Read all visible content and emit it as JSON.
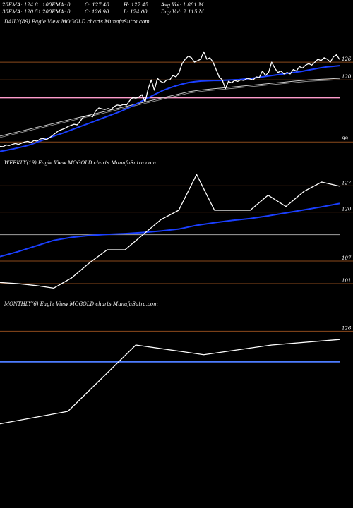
{
  "header": {
    "ema20": "20EMA: 124.8",
    "ema100": "100EMA: 0",
    "open": "O: 127.40",
    "high": "H: 127.45",
    "avg_vol": "Avg Vol: 1.881 M",
    "ema30": "30EMA: 120.51",
    "ema200": "200EMA: 0",
    "close": "C: 126.90",
    "low": "L: 124.00",
    "day_vol": "Day Vol: 2.115 M"
  },
  "colors": {
    "background": "#000000",
    "price": "#ffffff",
    "ema_fast": "#1a3fff",
    "ema_slow": "#cccccc",
    "level_line": "#8b4a1c",
    "pink_line": "#ff9ccc",
    "blue_band": "#4d7cff",
    "gray_line": "#a0a0a0"
  },
  "chart_data": [
    {
      "type": "line",
      "title": "DAILY(89) Eagle  View  MOGOLD charts MunafaSutra.com",
      "ylim": [
        95,
        137
      ],
      "levels": [
        "126",
        "120",
        "99"
      ],
      "level_values": [
        126,
        120,
        99
      ],
      "pink_level": 114,
      "series": [
        {
          "name": "price",
          "values": [
            97.5,
            97.4,
            98,
            97.8,
            98.2,
            98.5,
            98.2,
            98.6,
            99.0,
            99.2,
            98.8,
            99.5,
            99.3,
            100.0,
            100.2,
            99.8,
            100.4,
            101.2,
            102.0,
            102.8,
            103.2,
            103.6,
            104.2,
            104.6,
            105.0,
            104.8,
            106.0,
            107.5,
            107.8,
            108.0,
            107.5,
            109.5,
            110.5,
            110.2,
            110.0,
            110.3,
            110.0,
            111.0,
            111.5,
            111.3,
            111.7,
            111.5,
            113.0,
            114.0,
            113.8,
            114.2,
            115.0,
            112.5,
            117.0,
            120.0,
            116.5,
            120.5,
            119.5,
            119.0,
            120.0,
            120.0,
            121.5,
            121.0,
            122.5,
            125.5,
            127.0,
            128.0,
            127.5,
            126.0,
            126.5,
            127.0,
            129.5,
            127.0,
            127.5,
            126.0,
            123.5,
            121.0,
            120.0,
            117.0,
            119.5,
            119.0,
            119.8,
            119.5,
            120.0,
            119.8,
            120.5,
            120.3,
            120.0,
            121.0,
            120.8,
            123.0,
            121.5,
            122.5,
            126.0,
            124.0,
            122.5,
            123.0,
            122.0,
            122.5,
            122.0,
            123.5,
            123.0,
            124.5,
            124.0,
            125.0,
            125.5,
            125.0,
            126.0,
            127.0,
            126.5,
            127.5,
            127.0,
            126.0,
            127.8,
            128.5,
            126.9
          ]
        },
        {
          "name": "EMA20",
          "values": [
            95.8,
            96.2,
            96.6,
            97.1,
            97.6,
            98.2,
            99.0,
            99.8,
            100.6,
            101.3,
            102.0,
            102.8,
            103.6,
            104.4,
            105.2,
            106.0,
            106.8,
            107.6,
            108.4,
            109.2,
            110.1,
            111.1,
            112.2,
            113.3,
            114.4,
            115.5,
            116.5,
            117.3,
            118.0,
            118.6,
            119.1,
            119.4,
            119.6,
            119.7,
            119.8,
            119.8,
            119.9,
            120.0,
            120.1,
            120.3,
            120.5,
            120.8,
            121.1,
            121.4,
            121.7,
            122.0,
            122.3,
            122.6,
            122.9,
            123.3,
            123.7,
            124.1,
            124.4,
            124.6,
            124.8
          ]
        },
        {
          "name": "EMA30",
          "values": [
            101.0,
            101.5,
            102.0,
            102.5,
            103.0,
            103.5,
            104.0,
            104.5,
            105.0,
            105.5,
            106.0,
            106.5,
            107.0,
            107.5,
            108.0,
            108.5,
            109.0,
            109.5,
            110.0,
            110.5,
            111.0,
            111.5,
            112.0,
            112.5,
            113.0,
            113.5,
            114.0,
            114.5,
            115.0,
            115.5,
            116.0,
            116.3,
            116.6,
            116.8,
            117.0,
            117.2,
            117.4,
            117.6,
            117.8,
            118.0,
            118.2,
            118.4,
            118.6,
            118.8,
            119.0,
            119.2,
            119.4,
            119.6,
            119.8,
            120.0,
            120.1,
            120.2,
            120.3,
            120.4,
            120.51
          ]
        }
      ]
    },
    {
      "type": "line",
      "title": "WEEKLY(19) Eagle  View  MOGOLD charts MunafaSutra.com",
      "ylim": [
        98,
        131
      ],
      "levels": [
        "127",
        "120",
        "107",
        "101"
      ],
      "level_values": [
        127,
        120,
        107,
        101
      ],
      "ema_level": 114,
      "series": [
        {
          "name": "price",
          "values": [
            101.3,
            101.0,
            100.5,
            99.8,
            102.5,
            106.5,
            110.0,
            110.0,
            114.0,
            118.0,
            120.5,
            130.0,
            120.5,
            120.5,
            120.5,
            124.5,
            121.5,
            125.5,
            128.0,
            126.9
          ]
        },
        {
          "name": "EMA",
          "values": [
            108.2,
            109.5,
            111.0,
            112.5,
            113.3,
            113.8,
            114.1,
            114.3,
            114.6,
            115.0,
            115.5,
            116.5,
            117.2,
            117.8,
            118.3,
            119.0,
            119.8,
            120.6,
            121.4,
            122.3
          ]
        }
      ]
    },
    {
      "type": "line",
      "title": "MONTHLY(6) Eagle  View  MOGOLD charts MunafaSutra.com",
      "ylim": [
        85,
        133
      ],
      "levels": [
        "126"
      ],
      "level_values": [
        126
      ],
      "ema_level": 115,
      "series": [
        {
          "name": "price",
          "values": [
            92.5,
            97.0,
            121.0,
            117.5,
            121.0,
            123.0
          ]
        }
      ]
    }
  ]
}
